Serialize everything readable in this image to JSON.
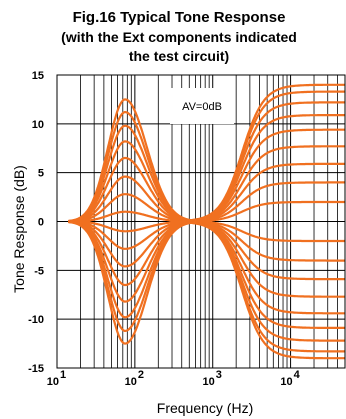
{
  "chart_data": {
    "type": "line",
    "title": "Fig.16 Typical Tone Response",
    "subtitle_lines": [
      "(with the Ext components indicated",
      "the test circuit)"
    ],
    "xlabel": "Frequency  (Hz)",
    "ylabel": "Tone Response  (dB)",
    "x_scale": "log",
    "xlim": [
      10,
      50000
    ],
    "ylim": [
      -15,
      15
    ],
    "x_ticks": [
      {
        "value": 10,
        "base": "10",
        "exp": "1"
      },
      {
        "value": 100,
        "base": "10",
        "exp": "2"
      },
      {
        "value": 1000,
        "base": "10",
        "exp": "3"
      },
      {
        "value": 10000,
        "base": "10",
        "exp": "4"
      }
    ],
    "y_ticks": [
      -15,
      -10,
      -5,
      0,
      5,
      10,
      15
    ],
    "grid": true,
    "annotation": "AV=0dB",
    "line_color": "#f07020",
    "bass_series_levels_db": [
      12.5,
      11.2,
      9.8,
      8.2,
      6.5,
      4.6,
      2.8,
      1.0,
      -1.0,
      -2.8,
      -4.6,
      -6.5,
      -8.2,
      -9.8,
      -11.2,
      -12.5
    ],
    "bass_peak_frequency_hz": 75,
    "treble_series_levels_db": [
      14.0,
      13.3,
      12.2,
      10.9,
      9.4,
      7.7,
      5.9,
      4.0,
      2.0,
      -2.0,
      -4.0,
      -5.9,
      -7.7,
      -9.4,
      -10.9,
      -12.2,
      -13.3,
      -14.0
    ],
    "treble_crossover_frequency_hz": 900
  }
}
